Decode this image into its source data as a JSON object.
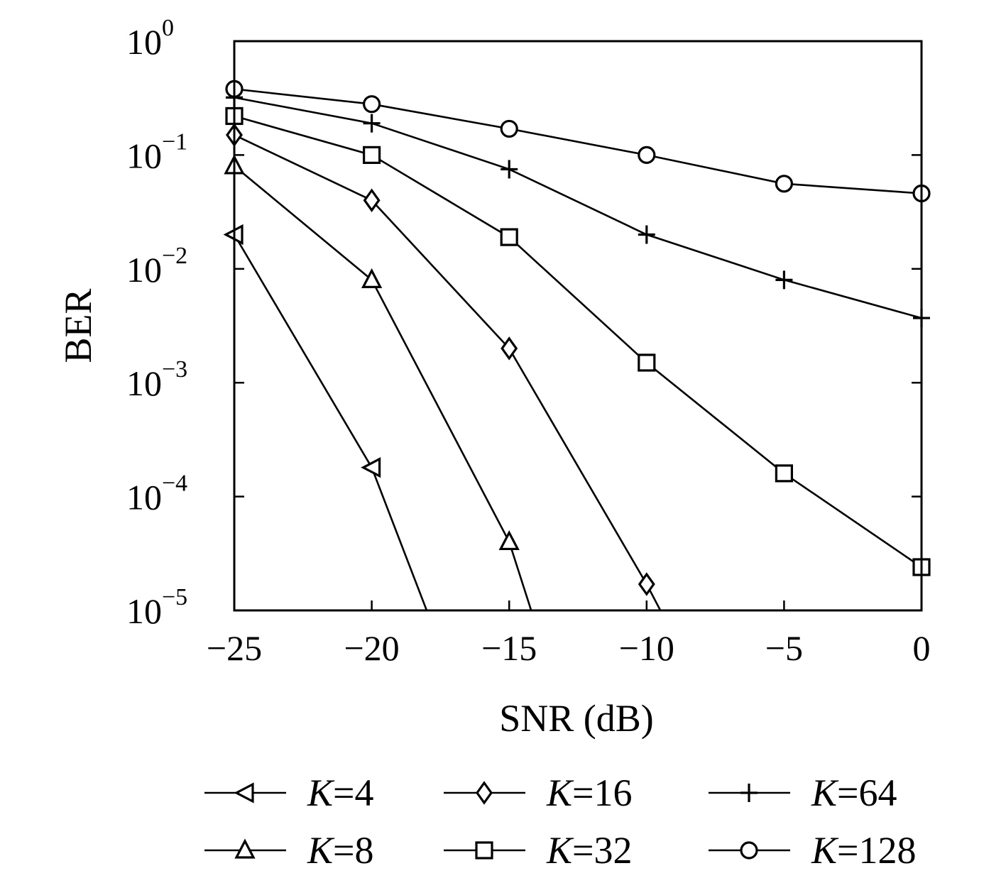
{
  "chart_data": {
    "type": "line",
    "title": "",
    "xlabel": "SNR (dB)",
    "ylabel": "BER",
    "xlim": [
      -25,
      0
    ],
    "ylim": [
      1e-05,
      1
    ],
    "yscale": "log",
    "grid": false,
    "legend_position": "bottom",
    "x_ticks": [
      {
        "value": -25,
        "label": "−25"
      },
      {
        "value": -20,
        "label": "−20"
      },
      {
        "value": -15,
        "label": "−15"
      },
      {
        "value": -10,
        "label": "−10"
      },
      {
        "value": -5,
        "label": "−5"
      },
      {
        "value": 0,
        "label": "0"
      }
    ],
    "y_ticks": [
      {
        "value": 1,
        "base": "10",
        "exp": "0"
      },
      {
        "value": 0.1,
        "base": "10",
        "exp": "−1"
      },
      {
        "value": 0.01,
        "base": "10",
        "exp": "−2"
      },
      {
        "value": 0.001,
        "base": "10",
        "exp": "−3"
      },
      {
        "value": 0.0001,
        "base": "10",
        "exp": "−4"
      },
      {
        "value": 1e-05,
        "base": "10",
        "exp": "−5"
      }
    ],
    "series": [
      {
        "name": "K=4",
        "var": "K",
        "eq": "=4",
        "marker": "triangle-left",
        "x": [
          -25,
          -20,
          -18
        ],
        "y": [
          0.02,
          0.00018,
          1e-05
        ]
      },
      {
        "name": "K=8",
        "var": "K",
        "eq": "=8",
        "marker": "triangle-up",
        "x": [
          -25,
          -20,
          -15,
          -14.2
        ],
        "y": [
          0.08,
          0.008,
          4e-05,
          1e-05
        ]
      },
      {
        "name": "K=16",
        "var": "K",
        "eq": "=16",
        "marker": "diamond",
        "x": [
          -25,
          -20,
          -15,
          -10,
          -9.5
        ],
        "y": [
          0.15,
          0.04,
          0.002,
          1.7e-05,
          1e-05
        ]
      },
      {
        "name": "K=32",
        "var": "K",
        "eq": "=32",
        "marker": "square",
        "x": [
          -25,
          -20,
          -15,
          -10,
          -5,
          0
        ],
        "y": [
          0.22,
          0.1,
          0.019,
          0.0015,
          0.00016,
          2.4e-05
        ]
      },
      {
        "name": "K=64",
        "var": "K",
        "eq": "=64",
        "marker": "plus",
        "x": [
          -25,
          -20,
          -15,
          -10,
          -5,
          0
        ],
        "y": [
          0.32,
          0.19,
          0.075,
          0.02,
          0.008,
          0.0037
        ]
      },
      {
        "name": "K=128",
        "var": "K",
        "eq": "=128",
        "marker": "circle",
        "x": [
          -25,
          -20,
          -15,
          -10,
          -5,
          0
        ],
        "y": [
          0.38,
          0.28,
          0.17,
          0.1,
          0.056,
          0.046
        ]
      }
    ],
    "legend_order": [
      0,
      2,
      4,
      1,
      3,
      5
    ]
  }
}
